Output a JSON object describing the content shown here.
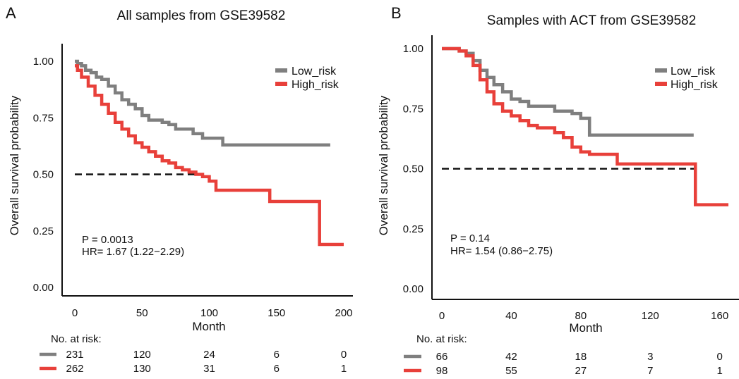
{
  "panels": [
    {
      "letter": "A",
      "chart_data": {
        "type": "line",
        "title": "All samples from GSE39582",
        "xlabel": "Month",
        "ylabel": "Overall survival probability",
        "xlim": [
          0,
          200
        ],
        "ylim": [
          0,
          1
        ],
        "xticks": [
          "0",
          "50",
          "100",
          "150",
          "200"
        ],
        "yticks": [
          "0.00",
          "0.25",
          "0.50",
          "0.75",
          "1.00"
        ],
        "grid": false,
        "legend_position": "top-right",
        "legend": [
          "Low_risk",
          "High_risk"
        ],
        "series": [
          {
            "name": "Low_risk",
            "x": [
              0,
              2,
              5,
              8,
              12,
              16,
              20,
              25,
              30,
              35,
              40,
              45,
              50,
              55,
              60,
              65,
              70,
              75,
              80,
              88,
              95,
              100,
              105,
              110,
              120,
              140,
              160,
              180,
              190
            ],
            "y": [
              1.0,
              0.99,
              0.98,
              0.96,
              0.95,
              0.93,
              0.92,
              0.89,
              0.86,
              0.83,
              0.81,
              0.79,
              0.76,
              0.74,
              0.74,
              0.73,
              0.72,
              0.7,
              0.7,
              0.68,
              0.66,
              0.66,
              0.66,
              0.63,
              0.63,
              0.63,
              0.63,
              0.63,
              0.63
            ]
          },
          {
            "name": "High_risk",
            "x": [
              0,
              2,
              5,
              10,
              15,
              20,
              25,
              30,
              35,
              40,
              45,
              50,
              55,
              60,
              65,
              70,
              75,
              80,
              85,
              90,
              95,
              100,
              105,
              115,
              125,
              135,
              145,
              160,
              175,
              182,
              190,
              200
            ],
            "y": [
              0.98,
              0.96,
              0.93,
              0.89,
              0.85,
              0.81,
              0.77,
              0.73,
              0.7,
              0.67,
              0.64,
              0.62,
              0.6,
              0.58,
              0.56,
              0.55,
              0.53,
              0.52,
              0.51,
              0.5,
              0.49,
              0.47,
              0.43,
              0.43,
              0.43,
              0.43,
              0.38,
              0.38,
              0.38,
              0.19,
              0.19,
              0.19
            ]
          }
        ],
        "reference_line": {
          "y": 0.5,
          "x_from": 0,
          "x_to": 95
        },
        "annotations": [
          "P = 0.0013",
          "HR= 1.67 (1.22−2.29)"
        ],
        "risk_table": {
          "title": "No. at risk:",
          "rows": [
            {
              "name": "Low_risk",
              "values": [
                "231",
                "120",
                "24",
                "6",
                "0"
              ]
            },
            {
              "name": "High_risk",
              "values": [
                "262",
                "130",
                "31",
                "6",
                "1"
              ]
            }
          ]
        }
      }
    },
    {
      "letter": "B",
      "chart_data": {
        "type": "line",
        "title": "Samples with ACT from GSE39582",
        "xlabel": "Month",
        "ylabel": "Overall survival probability",
        "xlim": [
          0,
          165
        ],
        "ylim": [
          0,
          1
        ],
        "xticks": [
          "0",
          "40",
          "80",
          "120",
          "160"
        ],
        "yticks": [
          "0.00",
          "0.25",
          "0.50",
          "0.75",
          "1.00"
        ],
        "grid": false,
        "legend_position": "top-right",
        "legend": [
          "Low_risk",
          "High_risk"
        ],
        "series": [
          {
            "name": "Low_risk",
            "x": [
              0,
              5,
              10,
              14,
              18,
              22,
              26,
              30,
              35,
              40,
              45,
              50,
              55,
              60,
              65,
              70,
              75,
              80,
              85,
              90,
              100,
              120,
              140,
              145
            ],
            "y": [
              1.0,
              1.0,
              0.99,
              0.98,
              0.95,
              0.91,
              0.88,
              0.85,
              0.82,
              0.79,
              0.78,
              0.76,
              0.76,
              0.76,
              0.74,
              0.74,
              0.73,
              0.71,
              0.64,
              0.64,
              0.64,
              0.64,
              0.64,
              0.64
            ]
          },
          {
            "name": "High_risk",
            "x": [
              0,
              5,
              10,
              14,
              18,
              22,
              26,
              30,
              35,
              40,
              45,
              50,
              55,
              60,
              65,
              70,
              75,
              80,
              85,
              90,
              100,
              101,
              120,
              140,
              145,
              146,
              165
            ],
            "y": [
              1.0,
              1.0,
              0.99,
              0.97,
              0.93,
              0.87,
              0.82,
              0.77,
              0.74,
              0.72,
              0.7,
              0.68,
              0.67,
              0.67,
              0.65,
              0.63,
              0.59,
              0.57,
              0.56,
              0.56,
              0.56,
              0.52,
              0.52,
              0.52,
              0.52,
              0.35,
              0.35
            ]
          }
        ],
        "reference_line": {
          "y": 0.5,
          "x_from": 0,
          "x_to": 146
        },
        "annotations": [
          "P = 0.14",
          "HR= 1.54 (0.86−2.75)"
        ],
        "risk_table": {
          "title": "No. at risk:",
          "rows": [
            {
              "name": "Low_risk",
              "values": [
                "66",
                "42",
                "18",
                "3",
                "0"
              ]
            },
            {
              "name": "High_risk",
              "values": [
                "98",
                "55",
                "27",
                "7",
                "1"
              ]
            }
          ]
        }
      }
    }
  ],
  "colors": {
    "Low_risk": "#7f7f7f",
    "High_risk": "#e8403a",
    "reference": "#111111",
    "axis": "#111111"
  }
}
